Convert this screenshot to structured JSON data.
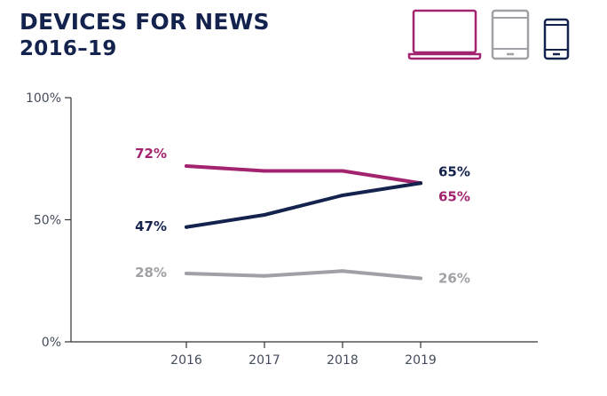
{
  "header": {
    "title_line1": "DEVICES FOR NEWS",
    "title_line2": "2016–19"
  },
  "device_icons": [
    {
      "name": "laptop-icon",
      "color": "#a3246e"
    },
    {
      "name": "tablet-icon",
      "color": "#a0a0a6"
    },
    {
      "name": "smartphone-icon",
      "color": "#14234d"
    }
  ],
  "chart_data": {
    "type": "line",
    "title": "DEVICES FOR NEWS 2016–19",
    "categories": [
      "2016",
      "2017",
      "2018",
      "2019"
    ],
    "ylim": [
      0,
      100
    ],
    "yticks": [
      {
        "value": 0,
        "label": "0%"
      },
      {
        "value": 50,
        "label": "50%"
      },
      {
        "value": 100,
        "label": "100%"
      }
    ],
    "grid": false,
    "legend": "icons top-right",
    "series": [
      {
        "device": "laptop-icon",
        "color": "#a3246e",
        "values": [
          72,
          70,
          70,
          65
        ],
        "start_label": "72%",
        "end_label": "65%"
      },
      {
        "device": "smartphone-icon",
        "color": "#14234d",
        "values": [
          47,
          52,
          60,
          65
        ],
        "start_label": "47%",
        "end_label": "65%"
      },
      {
        "device": "tablet-icon",
        "color": "#a0a0a6",
        "values": [
          28,
          27,
          29,
          26
        ],
        "start_label": "28%",
        "end_label": "26%"
      }
    ]
  }
}
